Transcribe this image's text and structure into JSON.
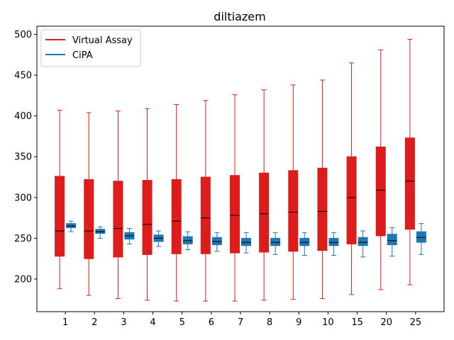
{
  "chart_data": {
    "type": "boxplot",
    "title": "diltiazem",
    "xlabel": "",
    "ylabel": "",
    "categories": [
      "1",
      "2",
      "3",
      "4",
      "5",
      "6",
      "7",
      "8",
      "9",
      "10",
      "15",
      "20",
      "25"
    ],
    "ylim": [
      160,
      510
    ],
    "yticks": [
      200,
      250,
      300,
      350,
      400,
      450,
      500
    ],
    "grid": false,
    "legend_position": "top-left",
    "series": [
      {
        "name": "Virtual Assay",
        "color": "#dd1c1c",
        "median_color": "#000000",
        "boxes": [
          {
            "whislo": 188,
            "q1": 228,
            "med": 259,
            "q3": 326,
            "whishi": 407
          },
          {
            "whislo": 180,
            "q1": 225,
            "med": 259,
            "q3": 322,
            "whishi": 404
          },
          {
            "whislo": 176,
            "q1": 227,
            "med": 262,
            "q3": 320,
            "whishi": 406
          },
          {
            "whislo": 174,
            "q1": 230,
            "med": 267,
            "q3": 321,
            "whishi": 409
          },
          {
            "whislo": 173,
            "q1": 231,
            "med": 271,
            "q3": 322,
            "whishi": 414
          },
          {
            "whislo": 173,
            "q1": 231,
            "med": 275,
            "q3": 325,
            "whishi": 419
          },
          {
            "whislo": 173,
            "q1": 232,
            "med": 278,
            "q3": 327,
            "whishi": 426
          },
          {
            "whislo": 174,
            "q1": 233,
            "med": 280,
            "q3": 330,
            "whishi": 432
          },
          {
            "whislo": 175,
            "q1": 234,
            "med": 282,
            "q3": 333,
            "whishi": 438
          },
          {
            "whislo": 176,
            "q1": 235,
            "med": 283,
            "q3": 336,
            "whishi": 444
          },
          {
            "whislo": 181,
            "q1": 243,
            "med": 300,
            "q3": 350,
            "whishi": 465
          },
          {
            "whislo": 187,
            "q1": 253,
            "med": 309,
            "q3": 362,
            "whishi": 481
          },
          {
            "whislo": 193,
            "q1": 261,
            "med": 320,
            "q3": 373,
            "whishi": 494
          }
        ]
      },
      {
        "name": "CiPA",
        "color": "#1f77b4",
        "median_color": "#000000",
        "boxes": [
          {
            "whislo": 258,
            "q1": 263,
            "med": 265,
            "q3": 268,
            "whishi": 271
          },
          {
            "whislo": 250,
            "q1": 256,
            "med": 258,
            "q3": 261,
            "whishi": 264
          },
          {
            "whislo": 243,
            "q1": 249,
            "med": 253,
            "q3": 257,
            "whishi": 262
          },
          {
            "whislo": 240,
            "q1": 246,
            "med": 250,
            "q3": 254,
            "whishi": 259
          },
          {
            "whislo": 236,
            "q1": 243,
            "med": 247,
            "q3": 252,
            "whishi": 258
          },
          {
            "whislo": 234,
            "q1": 242,
            "med": 246,
            "q3": 251,
            "whishi": 257
          },
          {
            "whislo": 232,
            "q1": 241,
            "med": 245,
            "q3": 250,
            "whishi": 257
          },
          {
            "whislo": 230,
            "q1": 241,
            "med": 245,
            "q3": 250,
            "whishi": 257
          },
          {
            "whislo": 229,
            "q1": 241,
            "med": 245,
            "q3": 250,
            "whishi": 257
          },
          {
            "whislo": 229,
            "q1": 241,
            "med": 245,
            "q3": 250,
            "whishi": 257
          },
          {
            "whislo": 227,
            "q1": 241,
            "med": 245,
            "q3": 251,
            "whishi": 259
          },
          {
            "whislo": 228,
            "q1": 242,
            "med": 247,
            "q3": 255,
            "whishi": 263
          },
          {
            "whislo": 230,
            "q1": 245,
            "med": 251,
            "q3": 258,
            "whishi": 268
          }
        ]
      }
    ]
  }
}
